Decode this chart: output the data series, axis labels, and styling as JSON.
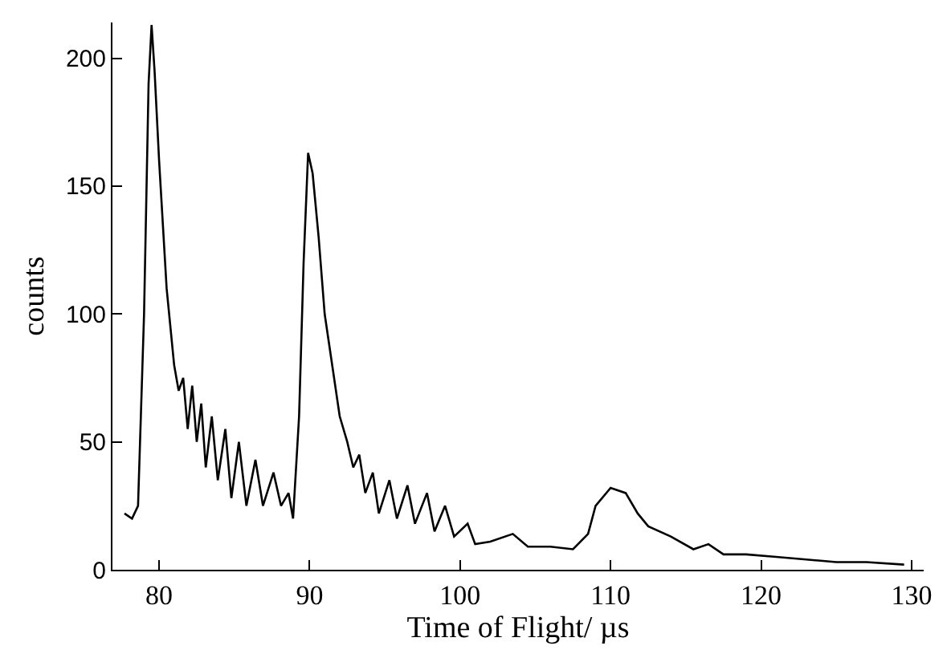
{
  "chart_data": {
    "type": "line",
    "xlabel": "Time of Flight/ µs",
    "ylabel": "counts",
    "xlim": [
      76.9,
      130.8
    ],
    "ylim": [
      0,
      214
    ],
    "xticks": [
      80,
      90,
      100,
      110,
      120,
      130
    ],
    "yticks": [
      0,
      50,
      100,
      150,
      200
    ],
    "legend": false,
    "marker": "none",
    "line_style": "solid",
    "series": [
      {
        "color": "#000000",
        "x": [
          77.7,
          78.2,
          78.6,
          79.0,
          79.3,
          79.5,
          79.7,
          80.0,
          80.5,
          81.0,
          81.3,
          81.6,
          81.9,
          82.2,
          82.5,
          82.8,
          83.1,
          83.5,
          83.9,
          84.4,
          84.8,
          85.3,
          85.8,
          86.4,
          86.9,
          87.6,
          88.1,
          88.6,
          88.9,
          89.3,
          89.6,
          89.9,
          90.2,
          90.6,
          91.0,
          91.5,
          92.0,
          92.5,
          92.9,
          93.3,
          93.7,
          94.2,
          94.6,
          95.3,
          95.8,
          96.5,
          97.0,
          97.8,
          98.3,
          99.0,
          99.6,
          100.5,
          101.0,
          102,
          103.5,
          104.5,
          106,
          107.5,
          108.5,
          109,
          110,
          111,
          111.8,
          112.5,
          114,
          115.5,
          116.5,
          117.5,
          119,
          121,
          123,
          125,
          127,
          129.5
        ],
        "values": [
          22,
          20,
          25,
          100,
          190,
          213,
          195,
          160,
          110,
          80,
          70,
          75,
          55,
          72,
          50,
          65,
          40,
          60,
          35,
          55,
          28,
          50,
          25,
          43,
          25,
          38,
          25,
          30,
          20,
          60,
          120,
          163,
          155,
          130,
          100,
          80,
          60,
          50,
          40,
          45,
          30,
          38,
          22,
          35,
          20,
          33,
          18,
          30,
          15,
          25,
          13,
          18,
          10,
          11,
          14,
          9,
          9,
          8,
          14,
          25,
          32,
          30,
          22,
          17,
          13,
          8,
          10,
          6,
          6,
          5,
          4,
          3,
          3,
          2
        ]
      }
    ]
  }
}
